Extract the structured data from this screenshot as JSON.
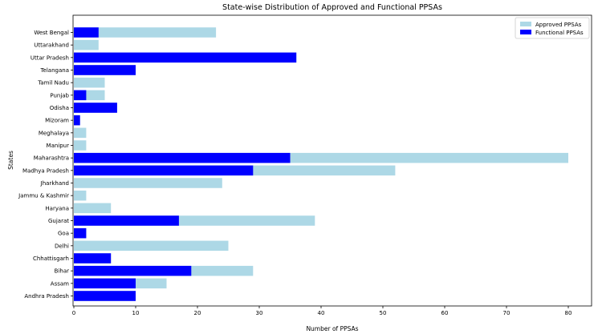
{
  "chart_data": {
    "type": "bar",
    "orientation": "horizontal",
    "title": "State-wise Distribution of Approved and Functional PPSAs",
    "xlabel": "Number of PPSAs",
    "ylabel": "States",
    "xlim": [
      0,
      84
    ],
    "xticks": [
      0,
      10,
      20,
      30,
      40,
      50,
      60,
      70,
      80
    ],
    "grid": false,
    "legend_position": "top-right",
    "categories": [
      "Andhra Pradesh",
      "Assam",
      "Bihar",
      "Chhattisgarh",
      "Delhi",
      "Goa",
      "Gujarat",
      "Haryana",
      "Jammu & Kashmir",
      "Jharkhand",
      "Madhya Pradesh",
      "Maharashtra",
      "Manipur",
      "Meghalaya",
      "Mizoram",
      "Odisha",
      "Punjab",
      "Tamil Nadu",
      "Telangana",
      "Uttar Pradesh",
      "Uttarakhand",
      "West Bengal"
    ],
    "series": [
      {
        "name": "Approved PPSAs",
        "color": "#add8e6",
        "values": [
          10,
          15,
          29,
          6,
          25,
          2,
          39,
          6,
          2,
          24,
          52,
          80,
          2,
          2,
          1,
          7,
          5,
          5,
          10,
          36,
          4,
          23
        ]
      },
      {
        "name": "Functional PPSAs",
        "color": "#0000ff",
        "values": [
          10,
          10,
          19,
          6,
          0,
          2,
          17,
          0,
          0,
          0,
          29,
          35,
          0,
          0,
          1,
          7,
          2,
          0,
          10,
          36,
          0,
          4
        ]
      }
    ]
  }
}
